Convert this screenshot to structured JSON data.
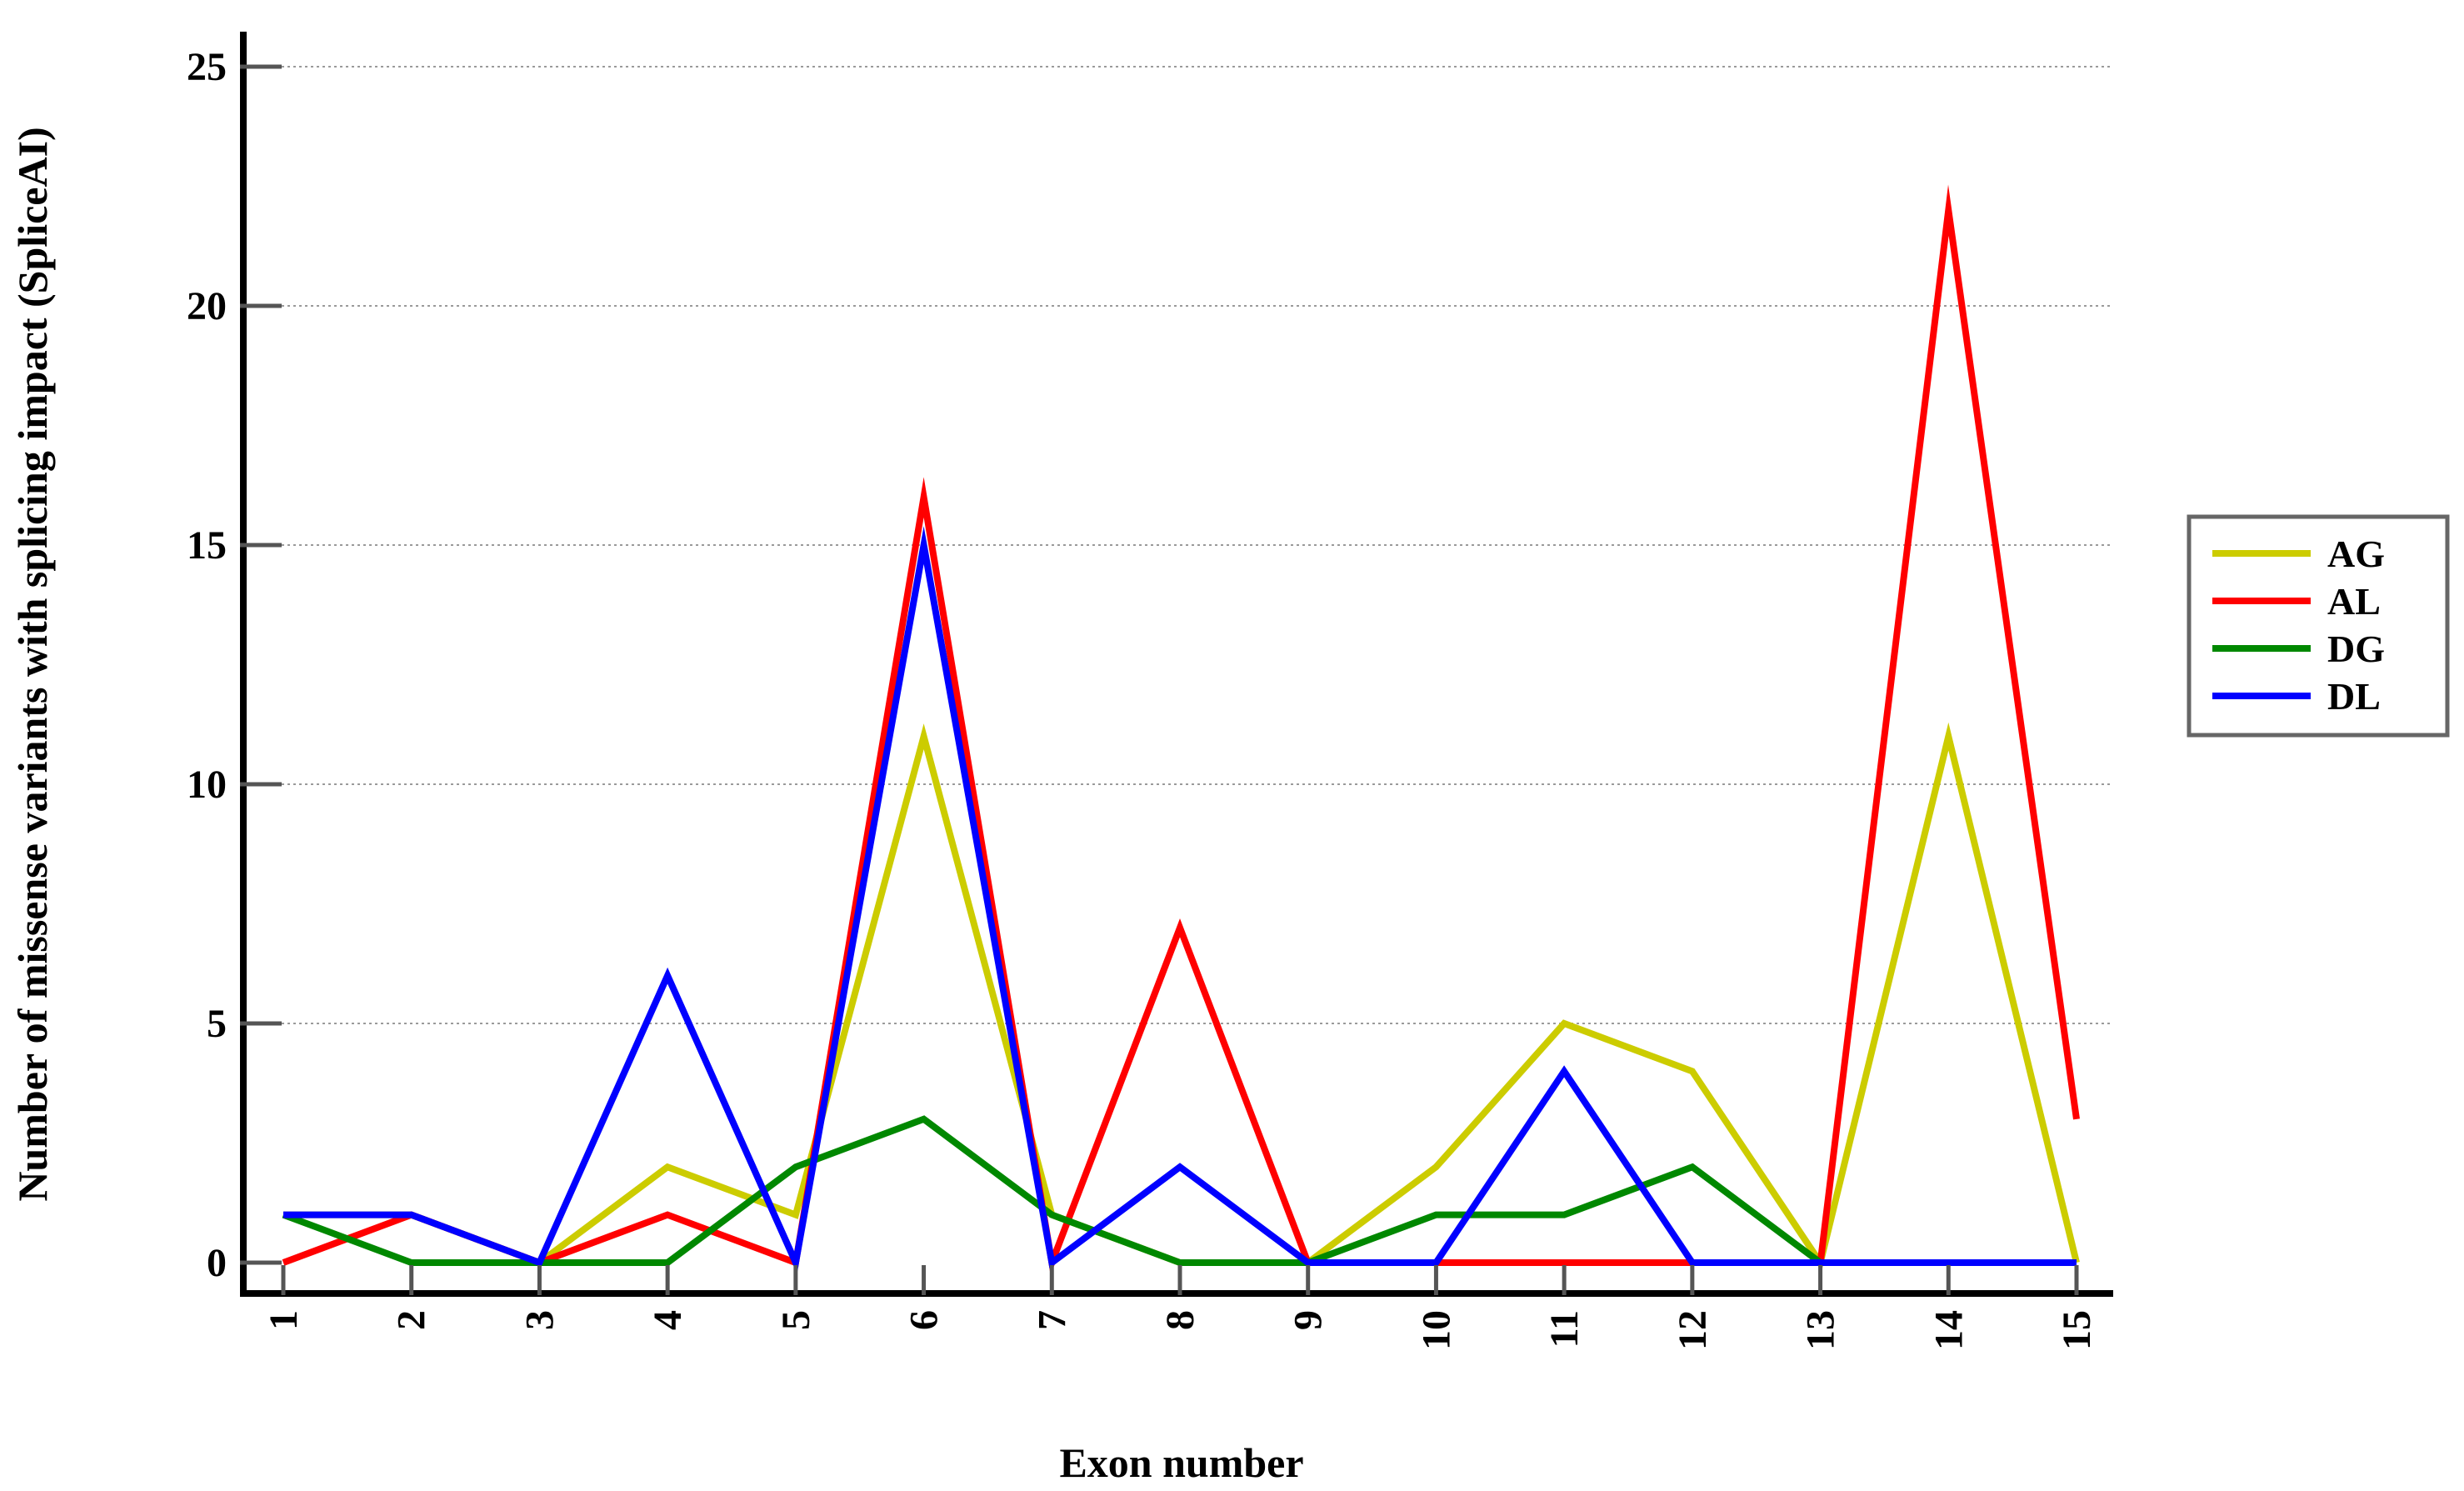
{
  "chart_data": {
    "type": "line",
    "title": "",
    "xlabel": "Exon number",
    "ylabel": "Number of missense variants with splicing impact (SpliceAI)",
    "x": [
      1,
      2,
      3,
      4,
      5,
      6,
      7,
      8,
      9,
      10,
      11,
      12,
      13,
      14,
      15
    ],
    "x_tick_labels": [
      "1",
      "2",
      "3",
      "4",
      "5",
      "6",
      "7",
      "8",
      "9",
      "10",
      "11",
      "12",
      "13",
      "14",
      "15"
    ],
    "ylim": [
      0,
      25
    ],
    "y_ticks": [
      0,
      5,
      10,
      15,
      20,
      25
    ],
    "y_tick_labels": [
      "0",
      "5",
      "10",
      "15",
      "20",
      "25"
    ],
    "grid": "horizontal dotted",
    "legend_position": "right",
    "series": [
      {
        "name": "AG",
        "color": "#cccc00",
        "values": [
          1,
          1,
          0,
          2,
          1,
          11,
          1,
          0,
          0,
          2,
          5,
          4,
          0,
          11,
          0
        ]
      },
      {
        "name": "AL",
        "color": "#ff0000",
        "values": [
          0,
          1,
          0,
          1,
          0,
          16,
          0,
          7,
          0,
          0,
          0,
          0,
          0,
          22,
          3
        ]
      },
      {
        "name": "DG",
        "color": "#008800",
        "values": [
          1,
          0,
          0,
          0,
          2,
          3,
          1,
          0,
          0,
          1,
          1,
          2,
          0,
          0,
          0
        ]
      },
      {
        "name": "DL",
        "color": "#0000ff",
        "values": [
          1,
          1,
          0,
          6,
          0,
          15,
          0,
          2,
          0,
          0,
          4,
          0,
          0,
          0,
          0
        ]
      }
    ]
  }
}
